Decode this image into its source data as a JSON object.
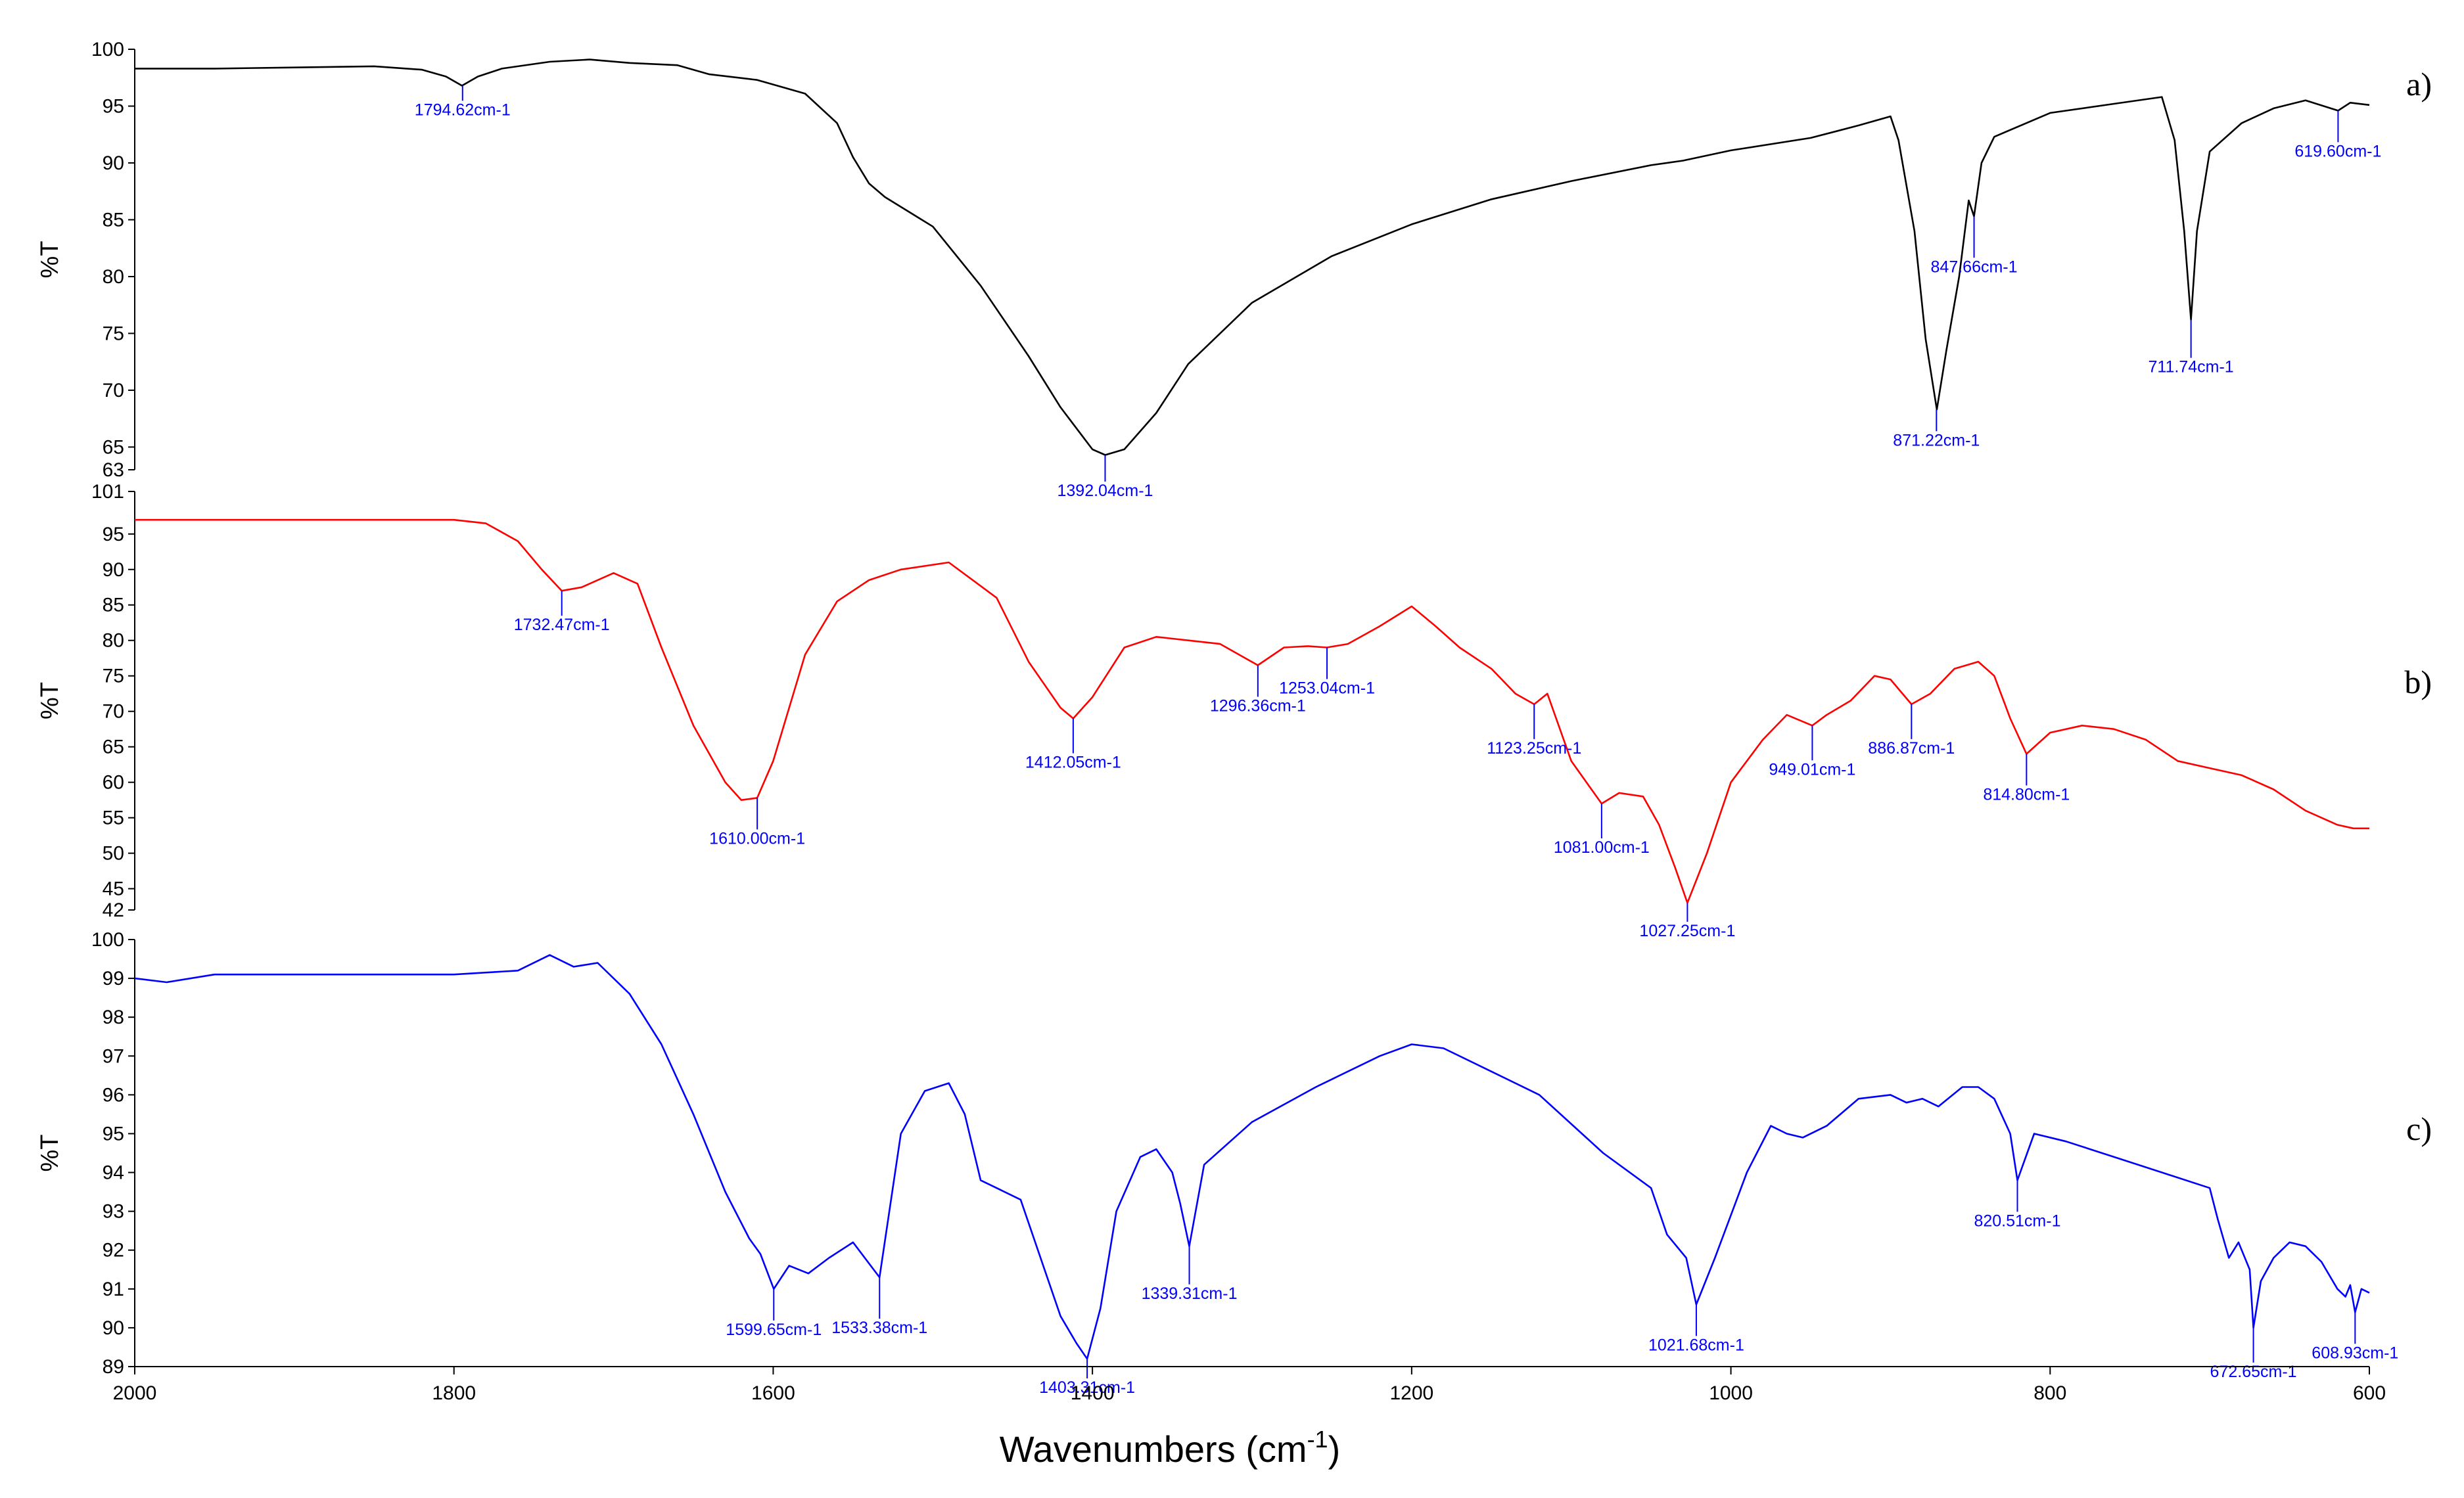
{
  "chart_data": {
    "type": "line",
    "xlabel_main": "Wavenumbers (cm",
    "xlabel_sup": "-1",
    "xlabel_close": ")",
    "xlim": [
      2000,
      600
    ],
    "xticks": [
      2000,
      1800,
      1600,
      1400,
      1200,
      1000,
      800,
      600
    ],
    "peak_color": "#0000ff",
    "panels": [
      {
        "id": "a",
        "letter": "a)",
        "ylabel": "%T",
        "ylim": [
          63,
          100
        ],
        "yticks": [
          63,
          65,
          70,
          75,
          80,
          85,
          90,
          95,
          100
        ],
        "color": "#000000",
        "x": [
          2000,
          1950,
          1900,
          1850,
          1820,
          1805,
          1795,
          1785,
          1770,
          1740,
          1715,
          1690,
          1660,
          1640,
          1610,
          1580,
          1560,
          1550,
          1540,
          1530,
          1500,
          1470,
          1440,
          1420,
          1400,
          1392,
          1380,
          1360,
          1340,
          1300,
          1250,
          1200,
          1150,
          1100,
          1050,
          1030,
          1000,
          950,
          920,
          900,
          895,
          885,
          878,
          871,
          865,
          857,
          851,
          847.66,
          843,
          835,
          800,
          760,
          730,
          722,
          716,
          711.74,
          708,
          700,
          680,
          660,
          640,
          619.6,
          612,
          600
        ],
        "y": [
          98.3,
          98.3,
          98.4,
          98.5,
          98.2,
          97.6,
          96.8,
          97.6,
          98.3,
          98.9,
          99.1,
          98.8,
          98.6,
          97.8,
          97.3,
          96.1,
          93.5,
          90.5,
          88.2,
          87.0,
          84.4,
          79.2,
          73.0,
          68.5,
          64.8,
          64.3,
          64.8,
          68.0,
          72.3,
          77.7,
          81.8,
          84.6,
          86.8,
          88.4,
          89.8,
          90.2,
          91.1,
          92.2,
          93.3,
          94.1,
          92.0,
          84.0,
          74.5,
          68.3,
          73.5,
          80.0,
          86.7,
          85.3,
          90.0,
          92.3,
          94.4,
          95.2,
          95.8,
          92.0,
          84.0,
          76.2,
          84.0,
          91.0,
          93.5,
          94.8,
          95.5,
          94.6,
          95.3,
          95.1
        ],
        "peaks": [
          {
            "x": 1794.62,
            "y": 96.8,
            "label": "1794.62cm-1"
          },
          {
            "x": 1392.04,
            "y": 64.3,
            "label": "1392.04cm-1"
          },
          {
            "x": 871.22,
            "y": 68.3,
            "label": "871.22cm-1"
          },
          {
            "x": 847.66,
            "y": 85.3,
            "label": "847.66cm-1"
          },
          {
            "x": 711.74,
            "y": 76.2,
            "label": "711.74cm-1"
          },
          {
            "x": 619.6,
            "y": 94.6,
            "label": "619.60cm-1"
          }
        ]
      },
      {
        "id": "b",
        "letter": "b)",
        "ylabel": "%T",
        "ylim": [
          42,
          101
        ],
        "yticks": [
          42,
          45,
          50,
          55,
          60,
          65,
          70,
          75,
          80,
          85,
          90,
          95,
          101
        ],
        "color": "#ff0000",
        "x": [
          2000,
          1900,
          1800,
          1780,
          1760,
          1745,
          1732.47,
          1720,
          1700,
          1685,
          1670,
          1650,
          1630,
          1620,
          1610,
          1600,
          1580,
          1560,
          1540,
          1520,
          1490,
          1460,
          1440,
          1420,
          1412.05,
          1400,
          1380,
          1360,
          1340,
          1320,
          1296.36,
          1280,
          1265,
          1253.04,
          1240,
          1220,
          1200,
          1185,
          1170,
          1150,
          1135,
          1123.25,
          1115,
          1100,
          1081,
          1070,
          1055,
          1045,
          1035,
          1027.25,
          1015,
          1000,
          980,
          965,
          949.01,
          940,
          925,
          910,
          900,
          886.87,
          875,
          860,
          845,
          835,
          825,
          814.8,
          800,
          780,
          760,
          740,
          720,
          700,
          680,
          660,
          640,
          620,
          610,
          600
        ],
        "y": [
          97,
          97,
          97,
          96.5,
          94,
          90,
          87,
          87.5,
          89.5,
          88,
          79,
          68,
          60,
          57.5,
          57.8,
          63,
          78,
          85.5,
          88.5,
          90,
          91,
          86,
          77,
          70.5,
          69,
          72,
          79,
          80.5,
          80,
          79.5,
          76.5,
          79,
          79.2,
          79,
          79.5,
          82,
          84.8,
          82,
          79,
          76,
          72.5,
          71,
          72.5,
          63,
          57,
          58.5,
          58,
          54,
          48,
          43,
          50,
          60,
          66,
          69.5,
          68,
          69.5,
          71.5,
          75,
          74.5,
          71,
          72.5,
          76,
          77,
          75,
          69,
          64,
          67,
          68,
          67.5,
          66,
          63,
          62,
          61,
          59,
          56,
          54,
          53.5,
          53.5
        ],
        "peaks": [
          {
            "x": 1732.47,
            "y": 87,
            "label": "1732.47cm-1"
          },
          {
            "x": 1610.0,
            "y": 57.8,
            "label": "1610.00cm-1"
          },
          {
            "x": 1412.05,
            "y": 69,
            "label": "1412.05cm-1"
          },
          {
            "x": 1296.36,
            "y": 76.5,
            "label": "1296.36cm-1"
          },
          {
            "x": 1253.04,
            "y": 79,
            "label": "1253.04cm-1"
          },
          {
            "x": 1123.25,
            "y": 71,
            "label": "1123.25cm-1"
          },
          {
            "x": 1081.0,
            "y": 57,
            "label": "1081.00cm-1"
          },
          {
            "x": 1027.25,
            "y": 43,
            "label": "1027.25cm-1"
          },
          {
            "x": 949.01,
            "y": 68,
            "label": "949.01cm-1"
          },
          {
            "x": 886.87,
            "y": 71,
            "label": "886.87cm-1"
          },
          {
            "x": 814.8,
            "y": 64,
            "label": "814.80cm-1"
          }
        ]
      },
      {
        "id": "c",
        "letter": "c)",
        "ylabel": "%T",
        "ylim": [
          89,
          100
        ],
        "yticks": [
          89,
          90,
          91,
          92,
          93,
          94,
          95,
          96,
          97,
          98,
          99,
          100
        ],
        "color": "#0000ff",
        "x": [
          2000,
          1980,
          1950,
          1900,
          1850,
          1800,
          1760,
          1740,
          1725,
          1710,
          1690,
          1670,
          1650,
          1630,
          1615,
          1608,
          1599.65,
          1590,
          1578,
          1565,
          1550,
          1533.38,
          1520,
          1505,
          1490,
          1480,
          1470,
          1460,
          1445,
          1430,
          1420,
          1410,
          1403.31,
          1395,
          1385,
          1370,
          1360,
          1350,
          1345,
          1339.31,
          1330,
          1300,
          1260,
          1220,
          1200,
          1180,
          1150,
          1120,
          1080,
          1050,
          1040,
          1028,
          1021.68,
          1010,
          990,
          975,
          965,
          955,
          940,
          920,
          900,
          890,
          880,
          870,
          855,
          845,
          835,
          825,
          820.51,
          810,
          790,
          760,
          730,
          700,
          695,
          688,
          682,
          675,
          672.65,
          668,
          660,
          650,
          640,
          630,
          620,
          615,
          612,
          608.93,
          605,
          600
        ],
        "y": [
          99,
          98.9,
          99.1,
          99.1,
          99.1,
          99.1,
          99.2,
          99.6,
          99.3,
          99.4,
          98.6,
          97.3,
          95.5,
          93.5,
          92.3,
          91.9,
          91,
          91.6,
          91.4,
          91.8,
          92.2,
          91.3,
          95,
          96.1,
          96.3,
          95.5,
          93.8,
          93.6,
          93.3,
          91.5,
          90.3,
          89.6,
          89.2,
          90.5,
          93,
          94.4,
          94.6,
          94.0,
          93.2,
          92.1,
          94.2,
          95.3,
          96.2,
          97.0,
          97.3,
          97.2,
          96.6,
          96.0,
          94.5,
          93.6,
          92.4,
          91.8,
          90.6,
          91.8,
          94,
          95.2,
          95.0,
          94.9,
          95.2,
          95.9,
          96.0,
          95.8,
          95.9,
          95.7,
          96.2,
          96.2,
          95.9,
          95.0,
          93.8,
          95.0,
          94.8,
          94.4,
          94.0,
          93.6,
          92.8,
          91.8,
          92.2,
          91.5,
          90.0,
          91.2,
          91.8,
          92.2,
          92.1,
          91.7,
          91.0,
          90.8,
          91.1,
          90.4,
          91.0,
          90.9
        ],
        "peaks": [
          {
            "x": 1599.65,
            "y": 91,
            "label": "1599.65cm-1"
          },
          {
            "x": 1533.38,
            "y": 91.3,
            "label": "1533.38cm-1"
          },
          {
            "x": 1403.31,
            "y": 89.2,
            "label": "1403.31cm-1"
          },
          {
            "x": 1339.31,
            "y": 92.1,
            "label": "1339.31cm-1"
          },
          {
            "x": 1021.68,
            "y": 90.6,
            "label": "1021.68cm-1"
          },
          {
            "x": 820.51,
            "y": 93.8,
            "label": "820.51cm-1"
          },
          {
            "x": 672.65,
            "y": 90.0,
            "label": "672.65cm-1"
          },
          {
            "x": 608.93,
            "y": 90.4,
            "label": "608.93cm-1"
          }
        ]
      }
    ]
  }
}
